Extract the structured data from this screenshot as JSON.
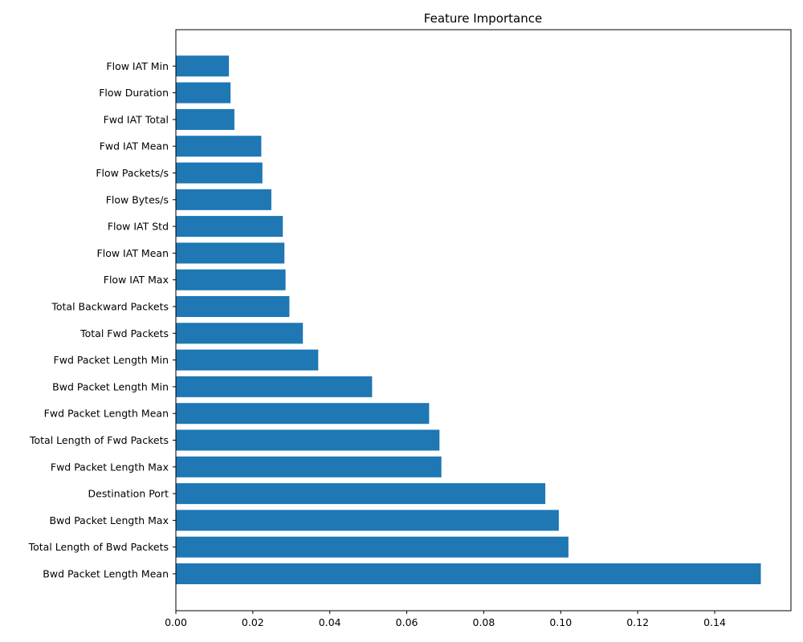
{
  "chart_data": {
    "type": "bar",
    "orientation": "horizontal",
    "title": "Feature Importance",
    "xlabel": "",
    "ylabel": "",
    "xlim": [
      0,
      0.16
    ],
    "x_ticks": [
      "0.00",
      "0.02",
      "0.04",
      "0.06",
      "0.08",
      "0.10",
      "0.12",
      "0.14"
    ],
    "bar_color": "#1f77b4",
    "grid": false,
    "categories": [
      "Bwd Packet Length Mean",
      "Total Length of Bwd Packets",
      "Bwd Packet Length Max",
      "Destination Port",
      "Fwd Packet Length Max",
      "Total Length of Fwd Packets",
      "Fwd Packet Length Mean",
      "Bwd Packet Length Min",
      "Fwd Packet Length Min",
      "Total Fwd Packets",
      "Total Backward Packets",
      "Flow IAT Max",
      "Flow IAT Mean",
      "Flow IAT Std",
      "Flow Bytes/s",
      "Flow Packets/s",
      "Fwd IAT Mean",
      "Fwd IAT Total",
      "Flow Duration",
      "Flow IAT Min"
    ],
    "values": [
      0.152,
      0.102,
      0.0995,
      0.096,
      0.069,
      0.0685,
      0.0658,
      0.051,
      0.037,
      0.033,
      0.0295,
      0.0285,
      0.0282,
      0.0278,
      0.0248,
      0.0225,
      0.0222,
      0.0152,
      0.0142,
      0.0138
    ]
  }
}
